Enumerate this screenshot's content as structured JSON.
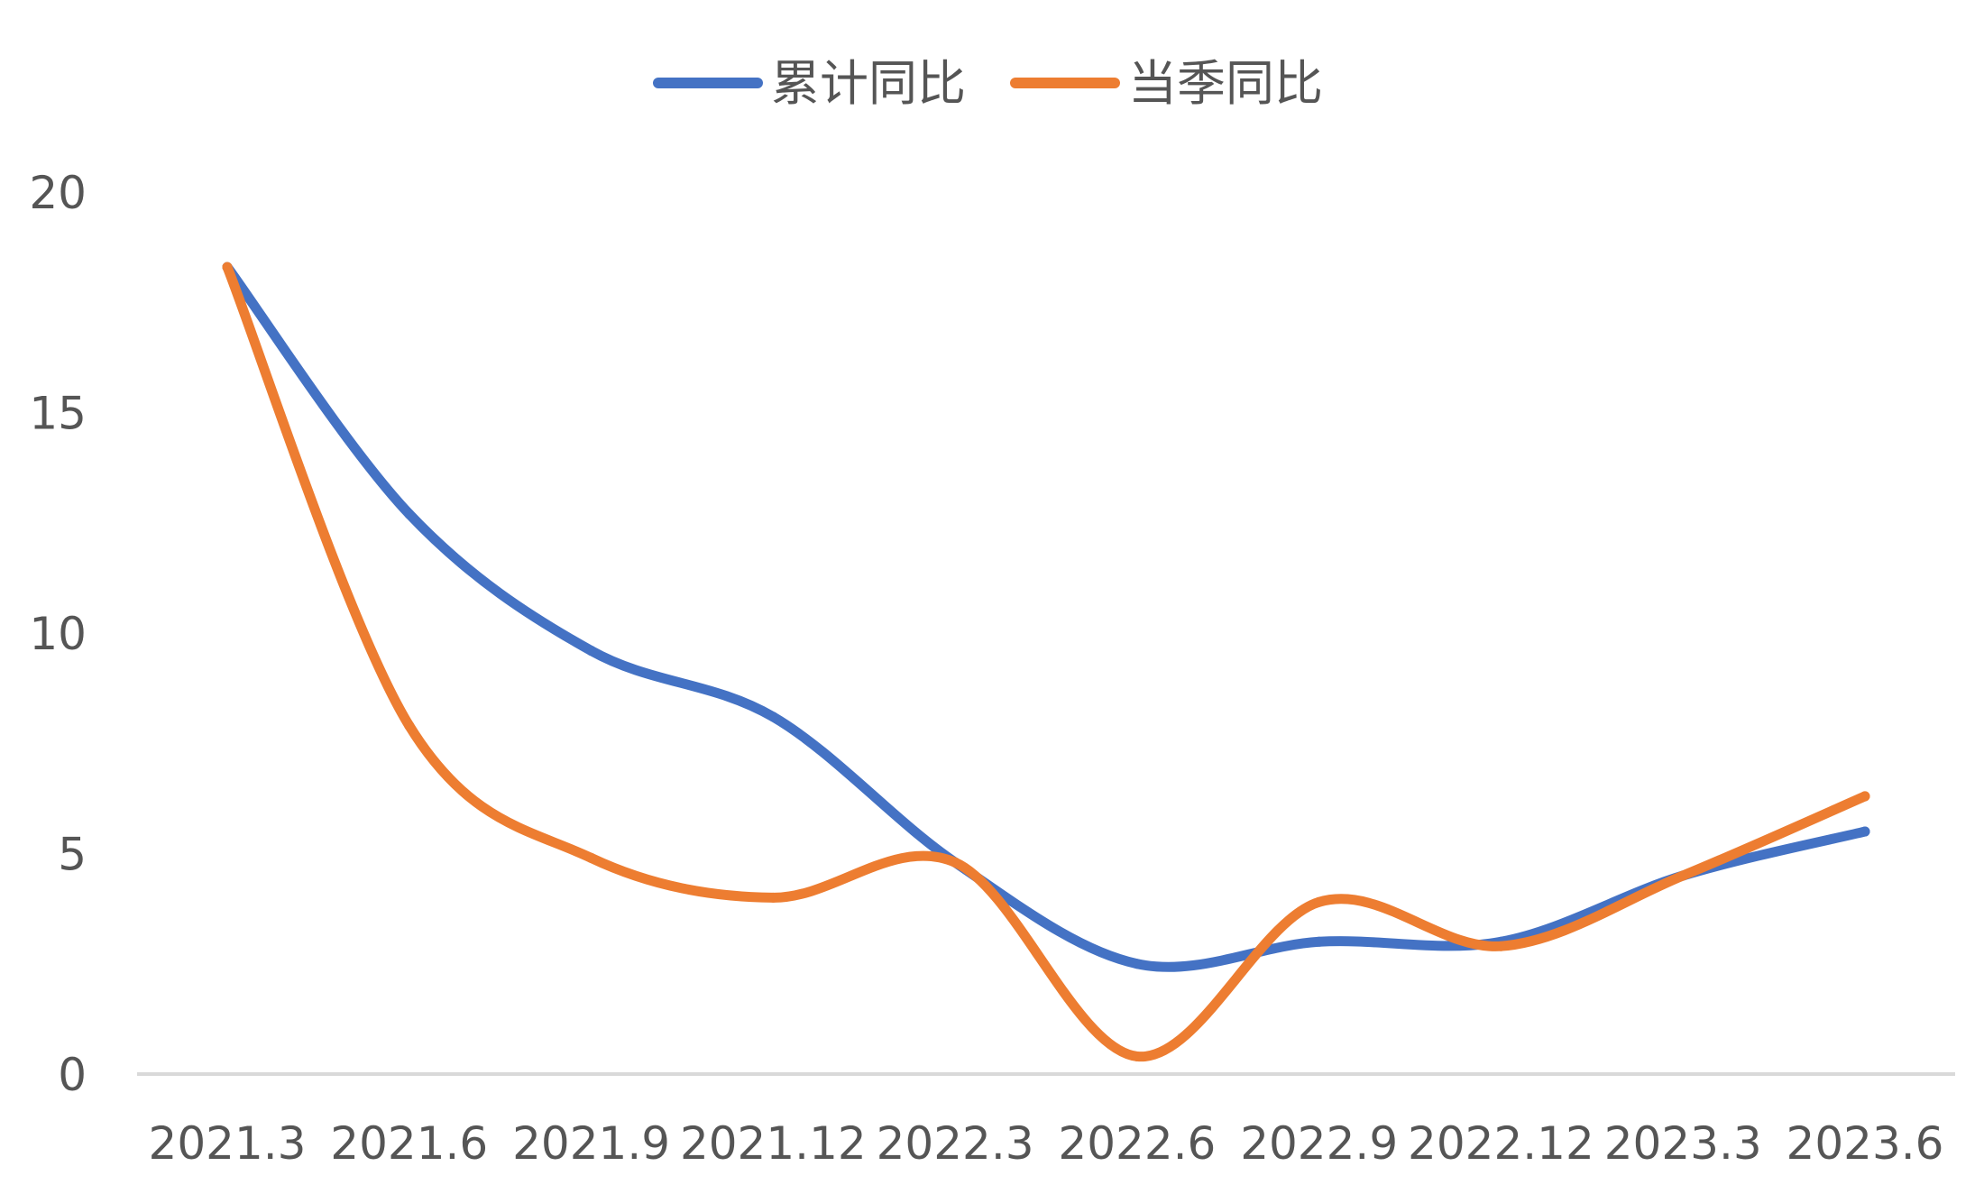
{
  "chart_data": {
    "type": "line",
    "title": "",
    "xlabel": "",
    "ylabel": "",
    "categories": [
      "2021.3",
      "2021.6",
      "2021.9",
      "2021.12",
      "2022.3",
      "2022.6",
      "2022.9",
      "2022.12",
      "2023.3",
      "2023.6"
    ],
    "y_ticks": [
      "0",
      "5",
      "10",
      "15",
      "20"
    ],
    "ylim": [
      0,
      20
    ],
    "grid": false,
    "legend_position": "top-center",
    "smooth": true,
    "series": [
      {
        "name": "累计同比",
        "color": "#4472C4",
        "values": [
          18.3,
          12.7,
          9.6,
          8.1,
          4.8,
          2.5,
          3.0,
          3.0,
          4.5,
          5.5
        ]
      },
      {
        "name": "当季同比",
        "color": "#ED7D31",
        "values": [
          18.3,
          7.9,
          4.9,
          4.0,
          4.8,
          0.4,
          3.9,
          2.9,
          4.5,
          6.3
        ]
      }
    ],
    "axis_color": "#D9D9D9"
  }
}
